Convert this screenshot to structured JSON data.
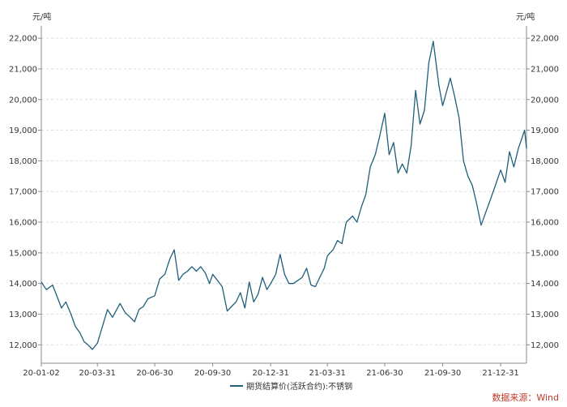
{
  "chart_data": {
    "type": "line",
    "y_unit_left": "元/吨",
    "y_unit_right": "元/吨",
    "ylim": [
      11400,
      22400
    ],
    "y_ticks": [
      12000,
      13000,
      14000,
      15000,
      16000,
      17000,
      18000,
      19000,
      20000,
      21000,
      22000
    ],
    "y_tick_labels": [
      "12,000",
      "13,000",
      "14,000",
      "15,000",
      "16,000",
      "17,000",
      "18,000",
      "19,000",
      "20,000",
      "21,000",
      "22,000"
    ],
    "x_ticks": [
      "2020-01-02",
      "2020-03-31",
      "2020-06-30",
      "2020-09-30",
      "2020-12-31",
      "2021-03-31",
      "2021-06-30",
      "2021-09-30",
      "2021-12-31"
    ],
    "x_tick_labels": [
      "20-01-02",
      "20-03-31",
      "20-06-30",
      "20-09-30",
      "20-12-31",
      "21-03-31",
      "21-06-30",
      "21-09-30",
      "21-12-31"
    ],
    "xlim": [
      "2020-01-02",
      "2022-02-10"
    ],
    "grid": true,
    "legend_position": "bottom-center",
    "series": [
      {
        "name": "期货结算价(活跃合约):不锈钢",
        "color": "#1f5f7a",
        "x": [
          "2020-01-02",
          "2020-01-10",
          "2020-01-20",
          "2020-02-03",
          "2020-02-10",
          "2020-02-18",
          "2020-02-25",
          "2020-03-03",
          "2020-03-10",
          "2020-03-16",
          "2020-03-23",
          "2020-03-31",
          "2020-04-08",
          "2020-04-16",
          "2020-04-24",
          "2020-05-06",
          "2020-05-14",
          "2020-05-22",
          "2020-05-29",
          "2020-06-05",
          "2020-06-12",
          "2020-06-19",
          "2020-06-30",
          "2020-07-08",
          "2020-07-16",
          "2020-07-24",
          "2020-07-31",
          "2020-08-07",
          "2020-08-14",
          "2020-08-21",
          "2020-08-28",
          "2020-09-04",
          "2020-09-11",
          "2020-09-18",
          "2020-09-25",
          "2020-09-30",
          "2020-10-15",
          "2020-10-23",
          "2020-10-30",
          "2020-11-06",
          "2020-11-13",
          "2020-11-20",
          "2020-11-27",
          "2020-12-04",
          "2020-12-11",
          "2020-12-18",
          "2020-12-25",
          "2020-12-31",
          "2021-01-08",
          "2021-01-15",
          "2021-01-22",
          "2021-01-29",
          "2021-02-05",
          "2021-02-19",
          "2021-02-26",
          "2021-03-05",
          "2021-03-12",
          "2021-03-19",
          "2021-03-26",
          "2021-03-31",
          "2021-04-09",
          "2021-04-16",
          "2021-04-23",
          "2021-04-30",
          "2021-05-10",
          "2021-05-17",
          "2021-05-24",
          "2021-05-31",
          "2021-06-07",
          "2021-06-15",
          "2021-06-22",
          "2021-06-30",
          "2021-07-07",
          "2021-07-14",
          "2021-07-21",
          "2021-07-28",
          "2021-08-04",
          "2021-08-11",
          "2021-08-18",
          "2021-08-25",
          "2021-09-01",
          "2021-09-08",
          "2021-09-15",
          "2021-09-24",
          "2021-09-30",
          "2021-10-12",
          "2021-10-19",
          "2021-10-26",
          "2021-11-02",
          "2021-11-09",
          "2021-11-16",
          "2021-11-23",
          "2021-11-30",
          "2021-12-07",
          "2021-12-14",
          "2021-12-21",
          "2021-12-31",
          "2022-01-07",
          "2022-01-14",
          "2022-01-21",
          "2022-01-28",
          "2022-02-07",
          "2022-02-10"
        ],
        "y": [
          14050,
          13800,
          13950,
          13200,
          13400,
          13000,
          12600,
          12400,
          12100,
          12000,
          11850,
          12050,
          12600,
          13150,
          12900,
          13350,
          13050,
          12900,
          12750,
          13150,
          13250,
          13500,
          13600,
          14150,
          14300,
          14800,
          15100,
          14100,
          14300,
          14400,
          14550,
          14400,
          14550,
          14350,
          14000,
          14300,
          13900,
          13100,
          13250,
          13400,
          13700,
          13200,
          14050,
          13400,
          13650,
          14200,
          13800,
          14000,
          14300,
          14950,
          14300,
          14000,
          14000,
          14200,
          14500,
          13950,
          13900,
          14200,
          14500,
          14900,
          15100,
          15400,
          15300,
          16000,
          16200,
          16000,
          16500,
          16900,
          17800,
          18200,
          18800,
          19550,
          18200,
          18600,
          17600,
          17900,
          17600,
          18500,
          20300,
          19200,
          19650,
          21200,
          21900,
          20450,
          19800,
          20700,
          20100,
          19400,
          18000,
          17500,
          17200,
          16600,
          15900,
          16300,
          16700,
          17100,
          17700,
          17300,
          18300,
          17800,
          18400,
          19000,
          18400
        ]
      }
    ],
    "source": "数据来源：Wind"
  }
}
